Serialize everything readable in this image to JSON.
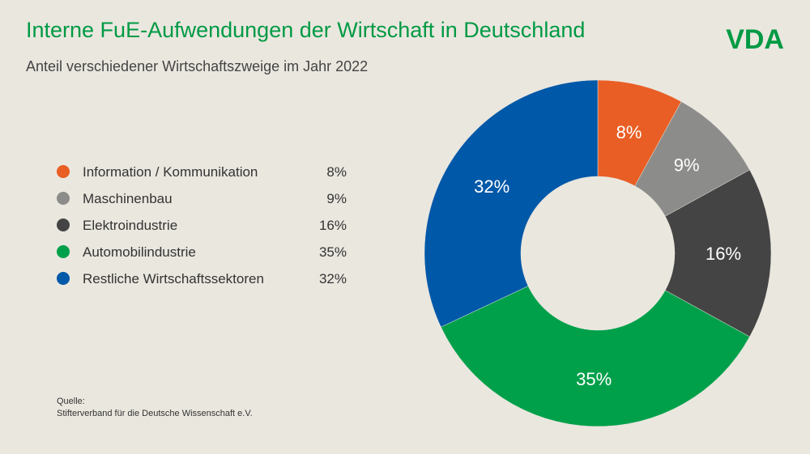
{
  "chart_data": {
    "type": "donut",
    "title": "Interne FuE-Aufwendungen der Wirtschaft in Deutschland",
    "subtitle": "Anteil verschiedener Wirtschaftszweige im Jahr 2022",
    "categories": [
      "Information / Kommunikation",
      "Maschinenbau",
      "Elektroindustrie",
      "Automobilindustrie",
      "Restliche Wirtschaftssektoren"
    ],
    "values": [
      8,
      9,
      16,
      35,
      32
    ],
    "value_labels": [
      "8%",
      "9%",
      "16%",
      "35%",
      "32%"
    ],
    "colors": [
      "#e95e24",
      "#8c8c8a",
      "#444444",
      "#00a04a",
      "#0058a8"
    ],
    "source_label": "Quelle:",
    "source": "Stifterverband für die Deutsche Wissenschaft e.V.",
    "logo": "VDA"
  }
}
